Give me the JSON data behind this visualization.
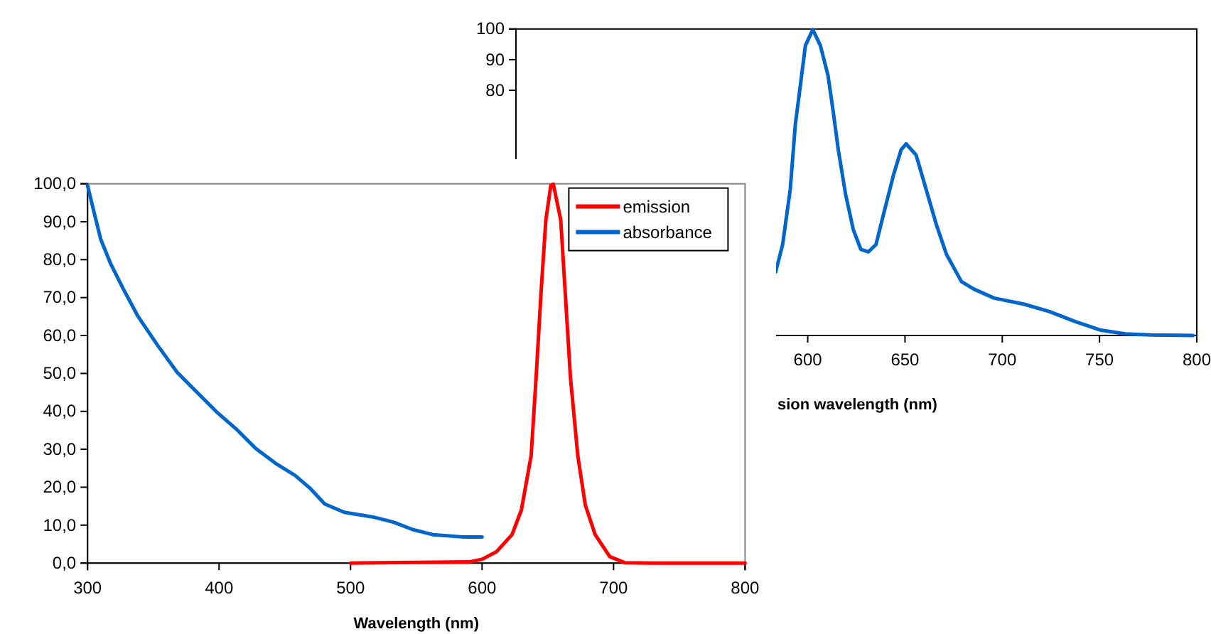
{
  "chart_data": [
    {
      "type": "line",
      "xlabel": "Wavelength (nm)",
      "xlim": [
        300,
        800
      ],
      "xticks": [
        300,
        400,
        500,
        600,
        700,
        800
      ],
      "ylim": [
        0,
        100
      ],
      "yticks": [
        {
          "value": 0,
          "label": "0,0"
        },
        {
          "value": 10,
          "label": "10,0"
        },
        {
          "value": 20,
          "label": "20,0"
        },
        {
          "value": 30,
          "label": "30,0"
        },
        {
          "value": 40,
          "label": "40,0"
        },
        {
          "value": 50,
          "label": "50,0"
        },
        {
          "value": 60,
          "label": "60,0"
        },
        {
          "value": 70,
          "label": "70,0"
        },
        {
          "value": 80,
          "label": "80,0"
        },
        {
          "value": 90,
          "label": "90,0"
        },
        {
          "value": 100,
          "label": "100,0"
        }
      ],
      "grid": false,
      "legend": "top right",
      "marker": "none",
      "line_style": "solid",
      "series": [
        {
          "name": "emission",
          "color": "#ff0000",
          "x": [
            500,
            590,
            600,
            611,
            622.8,
            629.9,
            637.3,
            641.1,
            644.8,
            648.5,
            652.3,
            654.2,
            659.8,
            663.5,
            667.2,
            672.8,
            678.5,
            686,
            697.1,
            708.4,
            730,
            800
          ],
          "values": [
            0,
            0.3,
            1,
            3,
            7.5,
            14,
            28.3,
            49,
            71.1,
            90.5,
            99.6,
            99.9,
            90.5,
            69.8,
            49,
            28.3,
            15.3,
            7.5,
            1.7,
            0.1,
            0,
            0
          ]
        },
        {
          "name": "absorbance",
          "color": "#0066cc",
          "x": [
            300,
            304.5,
            310.1,
            317.6,
            327,
            338.1,
            353.1,
            368.1,
            383,
            398,
            412.9,
            427.9,
            442.9,
            457.8,
            469,
            480.3,
            495.2,
            517.7,
            532.6,
            547.6,
            562.5,
            585,
            600
          ],
          "values": [
            99.6,
            93.1,
            85.3,
            78.9,
            72.4,
            65.2,
            57.5,
            50.3,
            45.1,
            39.9,
            35.4,
            30.2,
            26.3,
            23.1,
            19.8,
            15.6,
            13.4,
            12.1,
            10.8,
            8.8,
            7.5,
            6.9,
            6.9
          ]
        }
      ]
    },
    {
      "type": "line",
      "xlabel": "sion wavelength (nm)",
      "xlim": [
        450,
        800
      ],
      "xticks": [
        600,
        650,
        700,
        750,
        800
      ],
      "ylim": [
        0,
        100
      ],
      "yticks": [
        80,
        90,
        100
      ],
      "grid": false,
      "legend": false,
      "marker": "none",
      "line_style": "solid",
      "series": [
        {
          "color": "#0066cc",
          "x": [
            583.5,
            587.1,
            591,
            593.6,
            596.2,
            598.8,
            602.6,
            606.5,
            610.4,
            613,
            615.7,
            619.5,
            623.4,
            627.3,
            631.2,
            635.1,
            638.9,
            644.1,
            648,
            650.6,
            655.7,
            660.9,
            666.1,
            671.3,
            679,
            685.5,
            695.8,
            711.3,
            724.3,
            737.2,
            750.2,
            763.2,
            776.1,
            798.1
          ],
          "values": [
            20.7,
            29.7,
            47.6,
            68.7,
            81.6,
            94.6,
            99.8,
            94.6,
            84.9,
            73.5,
            60.6,
            45.9,
            34.6,
            28.1,
            27.3,
            29.7,
            39.4,
            52.4,
            60.6,
            62.5,
            58.9,
            47.6,
            36.2,
            26.5,
            17.6,
            15.1,
            12.2,
            10.2,
            7.8,
            4.6,
            1.8,
            0.5,
            0.2,
            0
          ]
        }
      ]
    }
  ]
}
